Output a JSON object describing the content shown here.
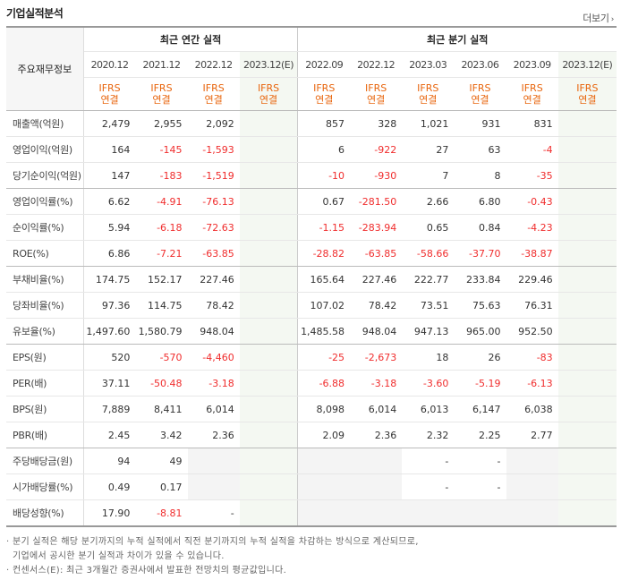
{
  "header": {
    "title": "기업실적분석",
    "more_label": "더보기",
    "more_icon": "chevron-right-icon"
  },
  "table": {
    "left_header": "주요재무정보",
    "groups": {
      "annual": "최근 연간 실적",
      "quarterly": "최근 분기 실적"
    },
    "periods": [
      "2020.12",
      "2021.12",
      "2022.12",
      "2023.12(E)",
      "2022.09",
      "2022.12",
      "2023.03",
      "2023.06",
      "2023.09",
      "2023.12(E)"
    ],
    "basis_line1": "IFRS",
    "basis_line2": "연결",
    "rows": [
      {
        "label": "매출액(억원)",
        "values": [
          "2,479",
          "2,955",
          "2,092",
          "",
          "857",
          "328",
          "1,021",
          "931",
          "831",
          ""
        ]
      },
      {
        "label": "영업이익(억원)",
        "values": [
          "164",
          "-145",
          "-1,593",
          "",
          "6",
          "-922",
          "27",
          "63",
          "-4",
          ""
        ]
      },
      {
        "label": "당기순이익(억원)",
        "values": [
          "147",
          "-183",
          "-1,519",
          "",
          "-10",
          "-930",
          "7",
          "8",
          "-35",
          ""
        ]
      },
      {
        "label": "영업이익률(%)",
        "values": [
          "6.62",
          "-4.91",
          "-76.13",
          "",
          "0.67",
          "-281.50",
          "2.66",
          "6.80",
          "-0.43",
          ""
        ]
      },
      {
        "label": "순이익률(%)",
        "values": [
          "5.94",
          "-6.18",
          "-72.63",
          "",
          "-1.15",
          "-283.94",
          "0.65",
          "0.84",
          "-4.23",
          ""
        ]
      },
      {
        "label": "ROE(%)",
        "values": [
          "6.86",
          "-7.21",
          "-63.85",
          "",
          "-28.82",
          "-63.85",
          "-58.66",
          "-37.70",
          "-38.87",
          ""
        ]
      },
      {
        "label": "부채비율(%)",
        "values": [
          "174.75",
          "152.17",
          "227.46",
          "",
          "165.64",
          "227.46",
          "222.77",
          "233.84",
          "229.46",
          ""
        ]
      },
      {
        "label": "당좌비율(%)",
        "values": [
          "97.36",
          "114.75",
          "78.42",
          "",
          "107.02",
          "78.42",
          "73.51",
          "75.63",
          "76.31",
          ""
        ]
      },
      {
        "label": "유보율(%)",
        "values": [
          "1,497.60",
          "1,580.79",
          "948.04",
          "",
          "1,485.58",
          "948.04",
          "947.13",
          "965.00",
          "952.50",
          ""
        ]
      },
      {
        "label": "EPS(원)",
        "values": [
          "520",
          "-570",
          "-4,460",
          "",
          "-25",
          "-2,673",
          "18",
          "26",
          "-83",
          ""
        ]
      },
      {
        "label": "PER(배)",
        "values": [
          "37.11",
          "-50.48",
          "-3.18",
          "",
          "-6.88",
          "-3.18",
          "-3.60",
          "-5.19",
          "-6.13",
          ""
        ]
      },
      {
        "label": "BPS(원)",
        "values": [
          "7,889",
          "8,411",
          "6,014",
          "",
          "8,098",
          "6,014",
          "6,013",
          "6,147",
          "6,038",
          ""
        ]
      },
      {
        "label": "PBR(배)",
        "values": [
          "2.45",
          "3.42",
          "2.36",
          "",
          "2.09",
          "2.36",
          "2.32",
          "2.25",
          "2.77",
          ""
        ]
      },
      {
        "label": "주당배당금(원)",
        "values": [
          "94",
          "49",
          "",
          "",
          "",
          "",
          "-",
          "-",
          "",
          ""
        ]
      },
      {
        "label": "시가배당률(%)",
        "values": [
          "0.49",
          "0.17",
          "",
          "",
          "",
          "",
          "-",
          "-",
          "",
          ""
        ]
      },
      {
        "label": "배당성향(%)",
        "values": [
          "17.90",
          "-8.81",
          "-",
          "",
          "",
          "",
          "",
          "",
          "",
          ""
        ]
      }
    ]
  },
  "notes": [
    "· 분기 실적은 해당 분기까지의 누적 실적에서 직전 분기까지의 누적 실적을 차감하는 방식으로 계산되므로,",
    "  기업에서 공시한 분기 실적과 차이가 있을 수 있습니다.",
    "· 컨센서스(E): 최근 3개월간 증권사에서 발표한 전망치의 평균값입니다."
  ],
  "colors": {
    "negative": "#f02d2d",
    "basis": "#e8650d",
    "estimate_bg": "#f4f8f2"
  }
}
